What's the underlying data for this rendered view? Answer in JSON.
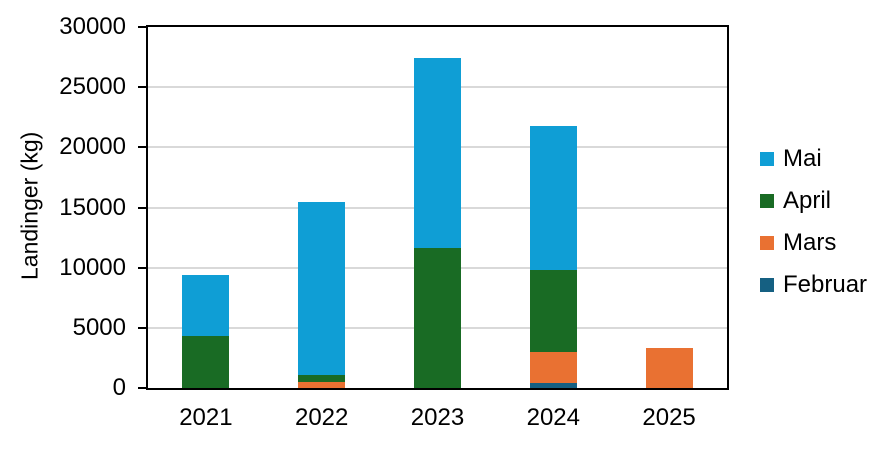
{
  "chart_data": {
    "type": "bar",
    "stacked": true,
    "title": "",
    "xlabel": "",
    "ylabel": "Landinger (kg)",
    "categories": [
      "2021",
      "2022",
      "2023",
      "2024",
      "2025"
    ],
    "series": [
      {
        "name": "Februar",
        "color": "#156082",
        "values": [
          0,
          0,
          0,
          400,
          0
        ]
      },
      {
        "name": "Mars",
        "color": "#E97132",
        "values": [
          0,
          500,
          0,
          2600,
          3300
        ]
      },
      {
        "name": "April",
        "color": "#196B24",
        "values": [
          4300,
          600,
          11600,
          6800,
          0
        ]
      },
      {
        "name": "Mai",
        "color": "#0F9ED5",
        "values": [
          5100,
          14350,
          15800,
          12000,
          0
        ]
      }
    ],
    "legend_order": [
      "Mai",
      "April",
      "Mars",
      "Februar"
    ],
    "legend_position": "right",
    "ylim": [
      0,
      30000
    ],
    "yticks": [
      0,
      5000,
      10000,
      15000,
      20000,
      25000,
      30000
    ],
    "grid": true
  },
  "styles": {
    "background": "#FFFFFF",
    "axis_color": "#000000",
    "grid_color": "#D9D9D9",
    "text_color": "#000000"
  }
}
